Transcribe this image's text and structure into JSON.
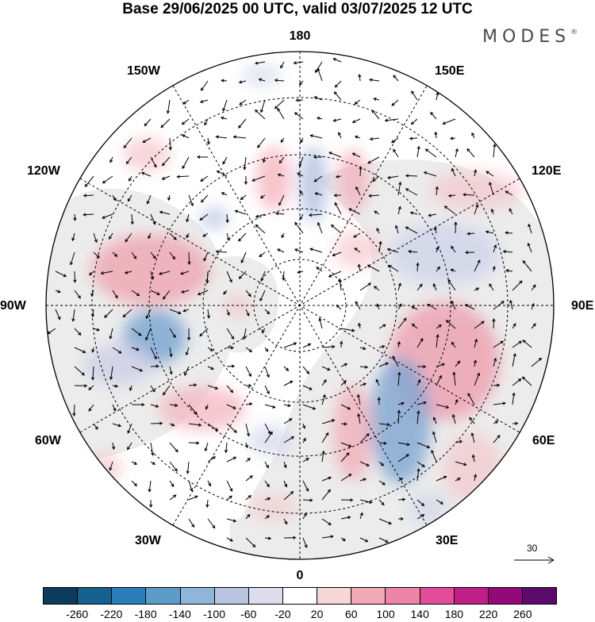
{
  "title": "Base 29/06/2025 00 UTC, valid 03/07/2025 12 UTC",
  "brand": {
    "name": "MODES",
    "mark": "®"
  },
  "map": {
    "projection": "north polar stereographic",
    "longitude_labels": {
      "top": "180",
      "bottom": "0",
      "left": "90W",
      "right": "90E",
      "upper_left_1": "150W",
      "upper_left_2": "120W",
      "upper_right_1": "150E",
      "upper_right_2": "120E",
      "lower_left_1": "60W",
      "lower_left_2": "30W",
      "lower_right_1": "60E",
      "lower_right_2": "30E"
    },
    "reference_vector": "30"
  },
  "colorbar": {
    "colors": [
      "#0d3b5e",
      "#14608f",
      "#2b7fb8",
      "#5b9cc9",
      "#8fb5d9",
      "#b9c4e0",
      "#dcdcec",
      "#ffffff",
      "#f7d6d8",
      "#f2a9b6",
      "#ee85a9",
      "#e24c9a",
      "#c01f87",
      "#93087a",
      "#5b0a6b"
    ],
    "tick_labels": [
      "-260",
      "-220",
      "-180",
      "-140",
      "-100",
      "-60",
      "-20",
      "20",
      "60",
      "100",
      "140",
      "180",
      "220",
      "260"
    ]
  }
}
